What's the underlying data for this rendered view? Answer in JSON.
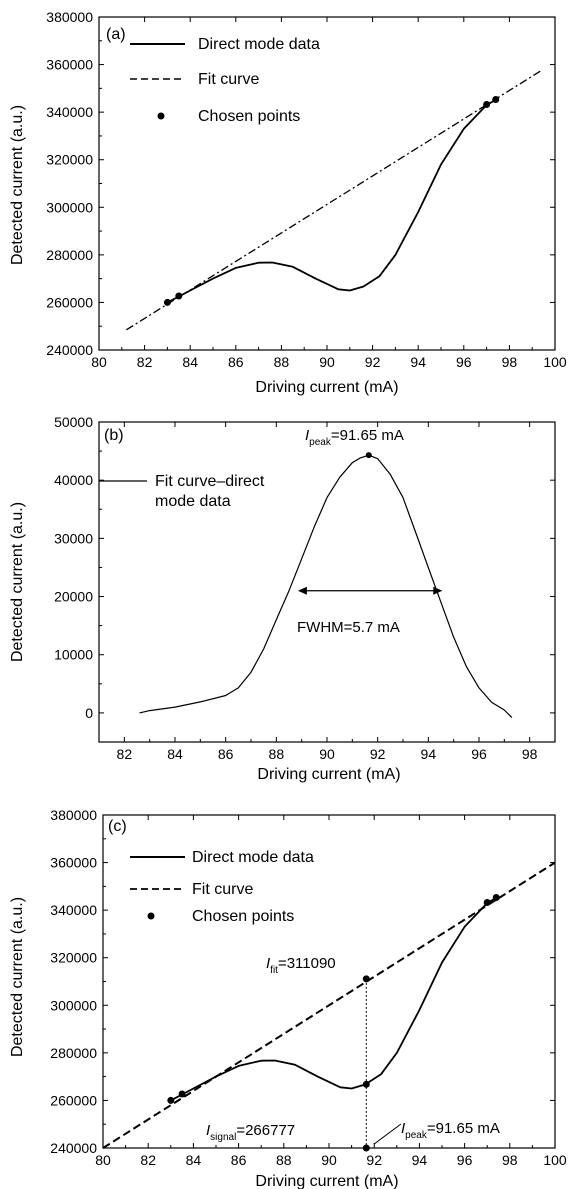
{
  "chart_data": [
    {
      "type": "line",
      "panel_label": "(a)",
      "xlabel": "Driving current (mA)",
      "ylabel": "Detected current (a.u.)",
      "xlim": [
        80,
        100
      ],
      "ylim": [
        240000,
        380000
      ],
      "xticks": [
        80,
        82,
        84,
        86,
        88,
        90,
        92,
        94,
        96,
        98,
        100
      ],
      "yticks": [
        240000,
        260000,
        280000,
        300000,
        320000,
        340000,
        360000,
        380000
      ],
      "legend_position": "top-left",
      "series": [
        {
          "name": "Direct mode data",
          "style": "solid",
          "x": [
            83.0,
            83.5,
            84.0,
            85.0,
            86.0,
            87.0,
            87.6,
            88.5,
            89.5,
            90.5,
            91.0,
            91.6,
            92.3,
            93.0,
            94.0,
            95.0,
            96.0,
            97.0,
            97.4
          ],
          "y": [
            260000,
            262500,
            265000,
            270000,
            274500,
            276700,
            276800,
            275000,
            270000,
            265500,
            265000,
            266700,
            271000,
            280000,
            298000,
            318000,
            333000,
            343000,
            345200
          ]
        },
        {
          "name": "Fit curve",
          "style": "dashdot",
          "x": [
            81.2,
            99.4
          ],
          "y": [
            248500,
            357500
          ]
        },
        {
          "name": "Chosen points",
          "style": "marker",
          "x": [
            83.0,
            83.5,
            97.0,
            97.4
          ],
          "y": [
            260000,
            262700,
            343200,
            345300
          ]
        }
      ]
    },
    {
      "type": "line",
      "panel_label": "(b)",
      "xlabel": "Driving current (mA)",
      "ylabel": "Detected current (a.u.)",
      "xlim": [
        81,
        99
      ],
      "ylim": [
        -5000,
        50000
      ],
      "xticks": [
        82,
        84,
        86,
        88,
        90,
        92,
        94,
        96,
        98
      ],
      "yticks": [
        0,
        10000,
        20000,
        30000,
        40000,
        50000
      ],
      "legend_position": "top-left",
      "series": [
        {
          "name": "Fit curve–direct mode data",
          "style": "solid",
          "x": [
            82.6,
            83.0,
            84.0,
            85.0,
            86.0,
            86.5,
            87.0,
            87.5,
            88.0,
            88.5,
            89.0,
            89.5,
            90.0,
            90.5,
            91.0,
            91.3,
            91.65,
            92.0,
            92.5,
            93.0,
            93.5,
            94.0,
            94.5,
            95.0,
            95.5,
            96.0,
            96.5,
            97.0,
            97.3
          ],
          "y": [
            0,
            400,
            1000,
            1900,
            3000,
            4300,
            7000,
            11000,
            16000,
            21000,
            26500,
            32000,
            37000,
            40500,
            43000,
            43800,
            44300,
            43700,
            41000,
            37000,
            31000,
            25000,
            19000,
            13000,
            8000,
            4300,
            1800,
            500,
            -800
          ]
        }
      ],
      "peak_marker": {
        "x": 91.65,
        "y": 44300
      },
      "fwhm_arrow": {
        "x1": 88.85,
        "x2": 94.55,
        "y": 21000
      }
    },
    {
      "type": "line",
      "panel_label": "(c)",
      "xlabel": "Driving current (mA)",
      "ylabel": "Detected current (a.u.)",
      "xlim": [
        80,
        100
      ],
      "ylim": [
        240000,
        380000
      ],
      "xticks": [
        80,
        82,
        84,
        86,
        88,
        90,
        92,
        94,
        96,
        98,
        100
      ],
      "yticks": [
        240000,
        260000,
        280000,
        300000,
        320000,
        340000,
        360000,
        380000
      ],
      "legend_position": "top-left",
      "series": [
        {
          "name": "Direct mode data",
          "style": "solid",
          "x": [
            83.0,
            83.5,
            84.0,
            85.0,
            86.0,
            87.0,
            87.6,
            88.5,
            89.5,
            90.5,
            91.0,
            91.6,
            92.3,
            93.0,
            94.0,
            95.0,
            96.0,
            97.0,
            97.4
          ],
          "y": [
            260000,
            262500,
            265000,
            270000,
            274500,
            276700,
            276800,
            275000,
            270000,
            265500,
            265000,
            266700,
            271000,
            280000,
            298000,
            318000,
            333000,
            343000,
            345200
          ]
        },
        {
          "name": "Fit curve",
          "style": "dashed",
          "x": [
            80.0,
            100.0
          ],
          "y": [
            240000,
            360000
          ]
        },
        {
          "name": "Chosen points",
          "style": "marker",
          "x": [
            83.0,
            83.5,
            97.0,
            97.4,
            91.65,
            91.65,
            91.65
          ],
          "y": [
            260000,
            262700,
            343200,
            345300,
            311090,
            266777,
            240000
          ]
        }
      ],
      "vline_x": 91.65
    }
  ],
  "legends": {
    "a": {
      "direct": "Direct mode data",
      "fit": "Fit curve",
      "chosen": "Chosen points"
    },
    "b": {
      "line1": "Fit curve–direct",
      "line2": "mode data"
    },
    "c": {
      "direct": "Direct mode data",
      "fit": "Fit curve",
      "chosen": "Chosen points"
    }
  },
  "annotations": {
    "b_peak_var": "I",
    "b_peak_sub": "peak",
    "b_peak_val": "=91.65 mA",
    "b_fwhm": "FWHM=5.7 mA",
    "c_fit_var": "I",
    "c_fit_sub": "fit",
    "c_fit_val": "=311090",
    "c_signal_var": "I",
    "c_signal_sub": "signal",
    "c_signal_val": "=266777",
    "c_peak_var": "I",
    "c_peak_sub": "peak",
    "c_peak_val": "=91.65 mA"
  }
}
